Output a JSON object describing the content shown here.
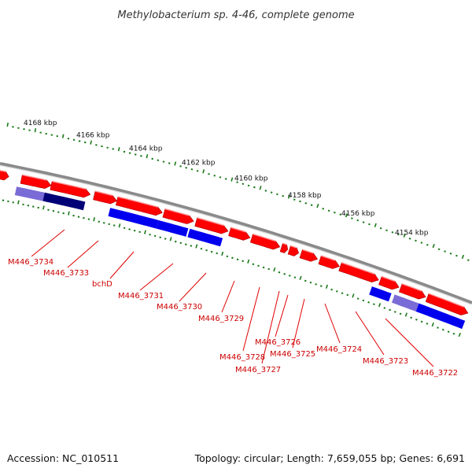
{
  "title": "Methylobacterium sp. 4-46, complete genome",
  "footer": {
    "accession": "Accession: NC_010511",
    "summary": "Topology: circular; Length: 7,659,055 bp; Genes: 6,691"
  },
  "colors": {
    "backbone": "#8a8a8a",
    "forward_gene": "#ff0000",
    "reverse_gene": "#0000ee",
    "selected_gene": "#7a6cd6",
    "dark_gene": "#000077",
    "ticks": "#1a7a1a",
    "labels": "#cc0000"
  },
  "ruler": {
    "unit": "kbp",
    "labels": [
      "4168 kbp",
      "4166 kbp",
      "4164 kbp",
      "4162 kbp",
      "4160 kbp",
      "4158 kbp",
      "4156 kbp",
      "4154 kbp"
    ]
  },
  "gene_labels": [
    "M446_3734",
    "M446_3733",
    "bchD",
    "M446_3731",
    "M446_3730",
    "M446_3729",
    "M446_3728",
    "M446_3727",
    "M446_3726",
    "M446_3725",
    "M446_3724",
    "M446_3723",
    "M446_3722"
  ]
}
